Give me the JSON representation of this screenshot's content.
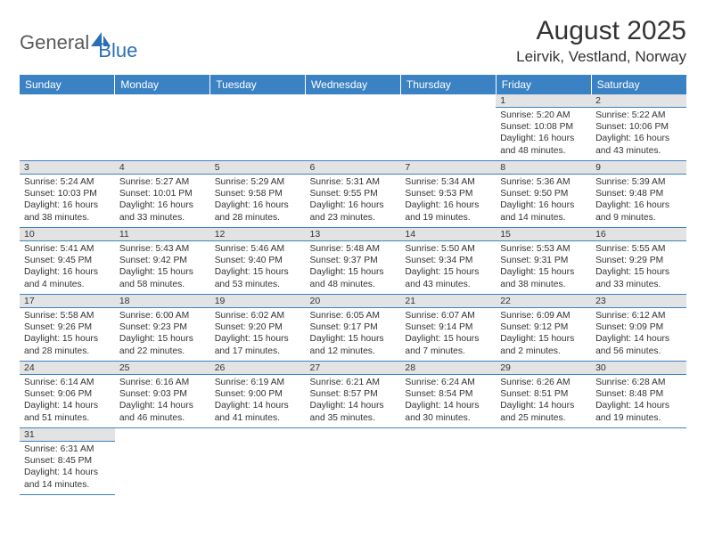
{
  "logo": {
    "part1": "General",
    "part2": "Blue"
  },
  "title": "August 2025",
  "location": "Leirvik, Vestland, Norway",
  "colors": {
    "header_bg": "#3a82c4",
    "header_fg": "#ffffff",
    "daynum_bg": "#e3e3e3",
    "border": "#3a82c4",
    "text": "#333333",
    "logo_gray": "#5a5a5a",
    "logo_blue": "#2a6fb5"
  },
  "weekdays": [
    "Sunday",
    "Monday",
    "Tuesday",
    "Wednesday",
    "Thursday",
    "Friday",
    "Saturday"
  ],
  "weeks": [
    [
      null,
      null,
      null,
      null,
      null,
      {
        "n": "1",
        "sr": "Sunrise: 5:20 AM",
        "ss": "Sunset: 10:08 PM",
        "d1": "Daylight: 16 hours",
        "d2": "and 48 minutes."
      },
      {
        "n": "2",
        "sr": "Sunrise: 5:22 AM",
        "ss": "Sunset: 10:06 PM",
        "d1": "Daylight: 16 hours",
        "d2": "and 43 minutes."
      }
    ],
    [
      {
        "n": "3",
        "sr": "Sunrise: 5:24 AM",
        "ss": "Sunset: 10:03 PM",
        "d1": "Daylight: 16 hours",
        "d2": "and 38 minutes."
      },
      {
        "n": "4",
        "sr": "Sunrise: 5:27 AM",
        "ss": "Sunset: 10:01 PM",
        "d1": "Daylight: 16 hours",
        "d2": "and 33 minutes."
      },
      {
        "n": "5",
        "sr": "Sunrise: 5:29 AM",
        "ss": "Sunset: 9:58 PM",
        "d1": "Daylight: 16 hours",
        "d2": "and 28 minutes."
      },
      {
        "n": "6",
        "sr": "Sunrise: 5:31 AM",
        "ss": "Sunset: 9:55 PM",
        "d1": "Daylight: 16 hours",
        "d2": "and 23 minutes."
      },
      {
        "n": "7",
        "sr": "Sunrise: 5:34 AM",
        "ss": "Sunset: 9:53 PM",
        "d1": "Daylight: 16 hours",
        "d2": "and 19 minutes."
      },
      {
        "n": "8",
        "sr": "Sunrise: 5:36 AM",
        "ss": "Sunset: 9:50 PM",
        "d1": "Daylight: 16 hours",
        "d2": "and 14 minutes."
      },
      {
        "n": "9",
        "sr": "Sunrise: 5:39 AM",
        "ss": "Sunset: 9:48 PM",
        "d1": "Daylight: 16 hours",
        "d2": "and 9 minutes."
      }
    ],
    [
      {
        "n": "10",
        "sr": "Sunrise: 5:41 AM",
        "ss": "Sunset: 9:45 PM",
        "d1": "Daylight: 16 hours",
        "d2": "and 4 minutes."
      },
      {
        "n": "11",
        "sr": "Sunrise: 5:43 AM",
        "ss": "Sunset: 9:42 PM",
        "d1": "Daylight: 15 hours",
        "d2": "and 58 minutes."
      },
      {
        "n": "12",
        "sr": "Sunrise: 5:46 AM",
        "ss": "Sunset: 9:40 PM",
        "d1": "Daylight: 15 hours",
        "d2": "and 53 minutes."
      },
      {
        "n": "13",
        "sr": "Sunrise: 5:48 AM",
        "ss": "Sunset: 9:37 PM",
        "d1": "Daylight: 15 hours",
        "d2": "and 48 minutes."
      },
      {
        "n": "14",
        "sr": "Sunrise: 5:50 AM",
        "ss": "Sunset: 9:34 PM",
        "d1": "Daylight: 15 hours",
        "d2": "and 43 minutes."
      },
      {
        "n": "15",
        "sr": "Sunrise: 5:53 AM",
        "ss": "Sunset: 9:31 PM",
        "d1": "Daylight: 15 hours",
        "d2": "and 38 minutes."
      },
      {
        "n": "16",
        "sr": "Sunrise: 5:55 AM",
        "ss": "Sunset: 9:29 PM",
        "d1": "Daylight: 15 hours",
        "d2": "and 33 minutes."
      }
    ],
    [
      {
        "n": "17",
        "sr": "Sunrise: 5:58 AM",
        "ss": "Sunset: 9:26 PM",
        "d1": "Daylight: 15 hours",
        "d2": "and 28 minutes."
      },
      {
        "n": "18",
        "sr": "Sunrise: 6:00 AM",
        "ss": "Sunset: 9:23 PM",
        "d1": "Daylight: 15 hours",
        "d2": "and 22 minutes."
      },
      {
        "n": "19",
        "sr": "Sunrise: 6:02 AM",
        "ss": "Sunset: 9:20 PM",
        "d1": "Daylight: 15 hours",
        "d2": "and 17 minutes."
      },
      {
        "n": "20",
        "sr": "Sunrise: 6:05 AM",
        "ss": "Sunset: 9:17 PM",
        "d1": "Daylight: 15 hours",
        "d2": "and 12 minutes."
      },
      {
        "n": "21",
        "sr": "Sunrise: 6:07 AM",
        "ss": "Sunset: 9:14 PM",
        "d1": "Daylight: 15 hours",
        "d2": "and 7 minutes."
      },
      {
        "n": "22",
        "sr": "Sunrise: 6:09 AM",
        "ss": "Sunset: 9:12 PM",
        "d1": "Daylight: 15 hours",
        "d2": "and 2 minutes."
      },
      {
        "n": "23",
        "sr": "Sunrise: 6:12 AM",
        "ss": "Sunset: 9:09 PM",
        "d1": "Daylight: 14 hours",
        "d2": "and 56 minutes."
      }
    ],
    [
      {
        "n": "24",
        "sr": "Sunrise: 6:14 AM",
        "ss": "Sunset: 9:06 PM",
        "d1": "Daylight: 14 hours",
        "d2": "and 51 minutes."
      },
      {
        "n": "25",
        "sr": "Sunrise: 6:16 AM",
        "ss": "Sunset: 9:03 PM",
        "d1": "Daylight: 14 hours",
        "d2": "and 46 minutes."
      },
      {
        "n": "26",
        "sr": "Sunrise: 6:19 AM",
        "ss": "Sunset: 9:00 PM",
        "d1": "Daylight: 14 hours",
        "d2": "and 41 minutes."
      },
      {
        "n": "27",
        "sr": "Sunrise: 6:21 AM",
        "ss": "Sunset: 8:57 PM",
        "d1": "Daylight: 14 hours",
        "d2": "and 35 minutes."
      },
      {
        "n": "28",
        "sr": "Sunrise: 6:24 AM",
        "ss": "Sunset: 8:54 PM",
        "d1": "Daylight: 14 hours",
        "d2": "and 30 minutes."
      },
      {
        "n": "29",
        "sr": "Sunrise: 6:26 AM",
        "ss": "Sunset: 8:51 PM",
        "d1": "Daylight: 14 hours",
        "d2": "and 25 minutes."
      },
      {
        "n": "30",
        "sr": "Sunrise: 6:28 AM",
        "ss": "Sunset: 8:48 PM",
        "d1": "Daylight: 14 hours",
        "d2": "and 19 minutes."
      }
    ],
    [
      {
        "n": "31",
        "sr": "Sunrise: 6:31 AM",
        "ss": "Sunset: 8:45 PM",
        "d1": "Daylight: 14 hours",
        "d2": "and 14 minutes."
      },
      null,
      null,
      null,
      null,
      null,
      null
    ]
  ]
}
